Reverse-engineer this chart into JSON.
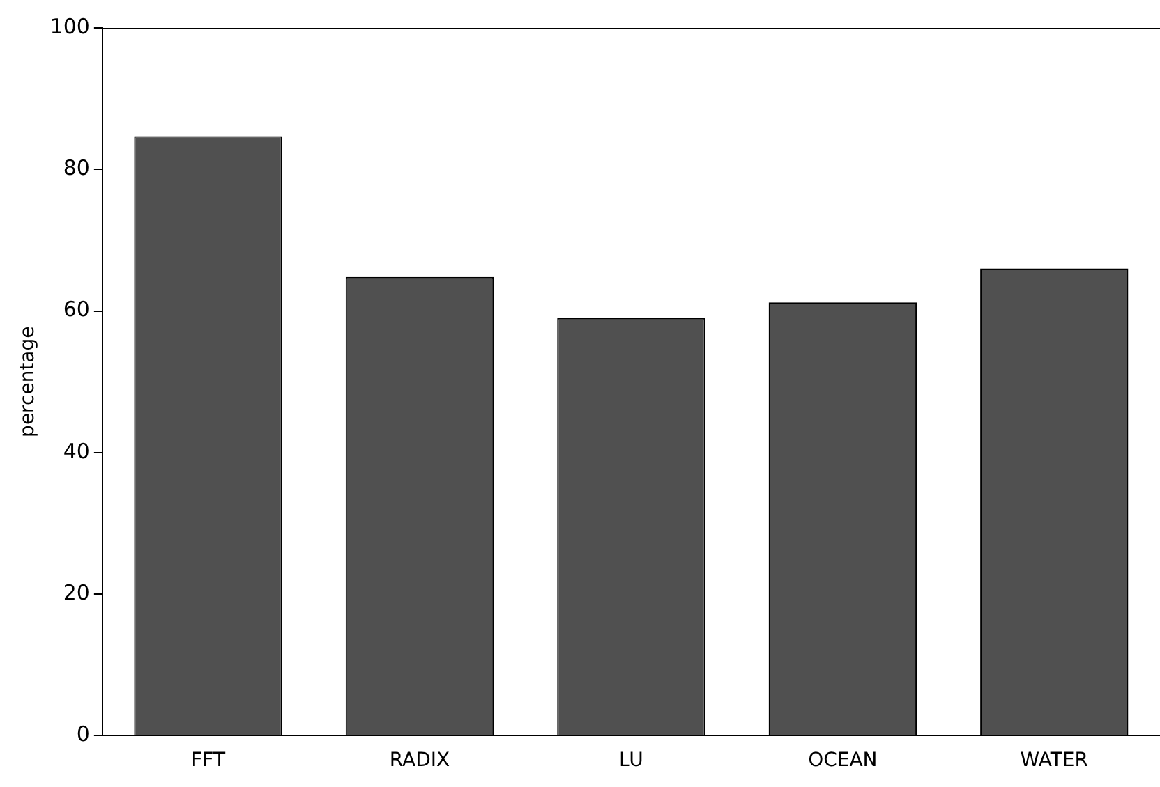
{
  "chart_data": {
    "type": "bar",
    "ylabel": "percentage",
    "categories": [
      "FFT",
      "RADIX",
      "LU",
      "OCEAN",
      "WATER"
    ],
    "values": [
      84.7,
      64.8,
      59.0,
      61.2,
      66.0
    ],
    "color": "#505050",
    "ylim": [
      0,
      100
    ],
    "yticks": [
      0,
      20,
      40,
      60,
      80,
      100
    ],
    "grid": false
  }
}
